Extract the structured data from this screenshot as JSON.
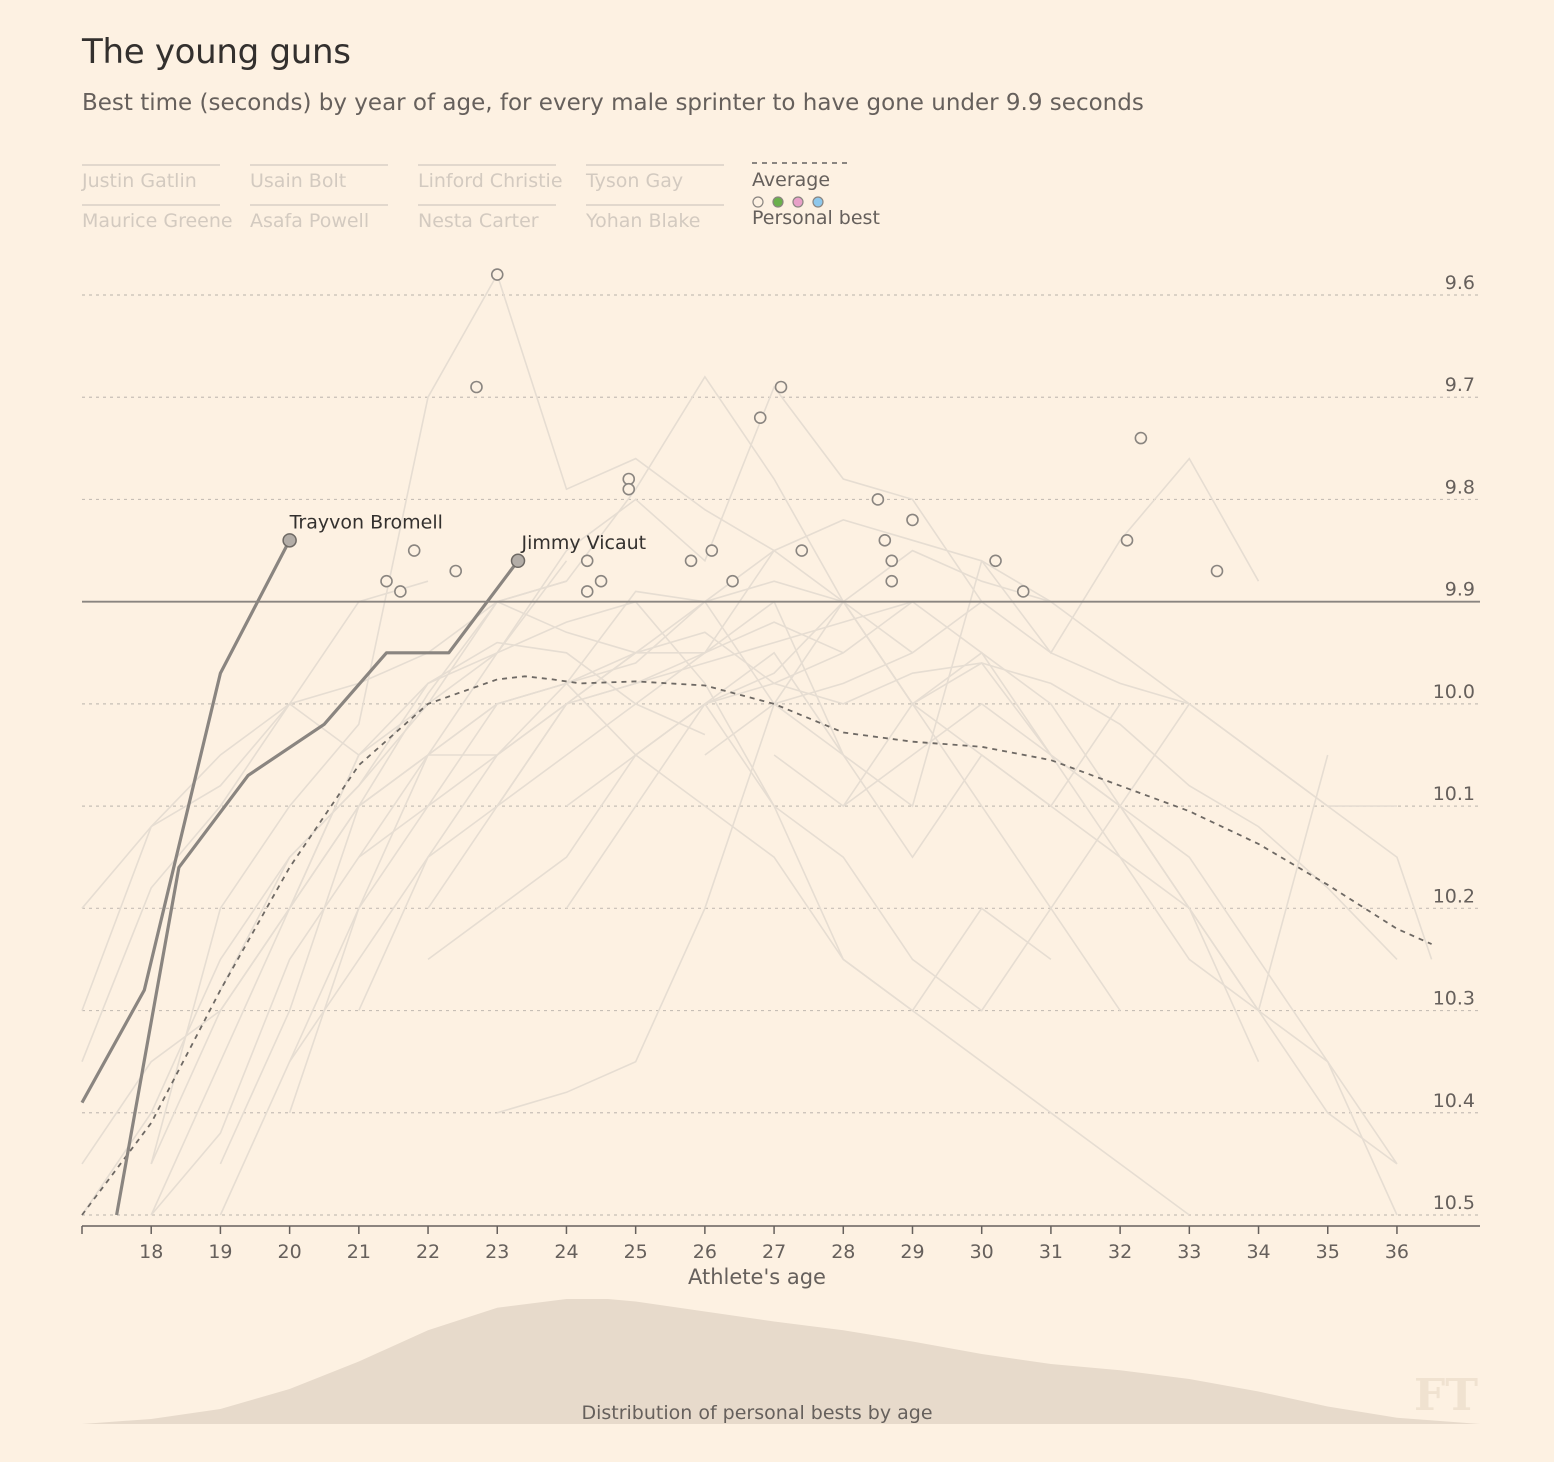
{
  "title": "The young guns",
  "subtitle": "Best time (seconds) by year of age, for every male sprinter to have gone under 9.9 seconds",
  "legend": {
    "athletes": [
      "Justin Gatlin",
      "Usain Bolt",
      "Linford Christie",
      "Tyson Gay",
      "Maurice Greene",
      "Asafa Powell",
      "Nesta Carter",
      "Yohan Blake"
    ],
    "average_label": "Average",
    "personal_best_label": "Personal best",
    "personal_best_colors": [
      "#fdf1e2",
      "#6ab04c",
      "#e8a0c8",
      "#8ec8ec"
    ]
  },
  "colors": {
    "background": "#fdf1e2",
    "background_line": "#e6ddd2",
    "highlight_line": "#8a8580",
    "average_line": "#6e6964",
    "threshold_line": "#8a8580",
    "grid": "#c7bfb6",
    "density_fill": "#e7dacb"
  },
  "chart_data": {
    "type": "line",
    "xlabel": "Athlete's age",
    "ylabel": "",
    "xlim": [
      17,
      37.2
    ],
    "ylim": [
      10.5,
      9.6
    ],
    "y_inverted": true,
    "xticks": [
      18,
      19,
      20,
      21,
      22,
      23,
      24,
      25,
      26,
      27,
      28,
      29,
      30,
      31,
      32,
      33,
      34,
      35,
      36
    ],
    "yticks": [
      9.6,
      9.7,
      9.8,
      9.9,
      10.0,
      10.1,
      10.2,
      10.3,
      10.4,
      10.5
    ],
    "ytick_labels": [
      "9.6",
      "9.7",
      "9.8",
      "9.9",
      "10.0",
      "10.1",
      "10.2",
      "10.3",
      "10.4",
      "10.5"
    ],
    "threshold": 9.9,
    "grid": true,
    "highlighted_series": [
      {
        "name": "Trayvon Bromell",
        "x": [
          17,
          17.9,
          19,
          20
        ],
        "y": [
          10.39,
          10.28,
          9.97,
          9.84
        ]
      },
      {
        "name": "Jimmy Vicaut",
        "x": [
          17.5,
          18.4,
          19.4,
          20.5,
          21.4,
          22.3,
          23.3
        ],
        "y": [
          10.5,
          10.16,
          10.07,
          10.02,
          9.95,
          9.95,
          9.86
        ]
      }
    ],
    "average": {
      "name": "Average",
      "x": [
        17,
        18,
        19,
        20,
        21,
        22,
        23,
        23.4,
        23.8,
        24.2,
        25,
        26,
        27,
        28,
        29,
        30,
        31,
        32,
        33,
        34,
        35,
        36,
        36.5
      ],
      "y": [
        10.5,
        10.41,
        10.28,
        10.16,
        10.06,
        10.0,
        9.976,
        9.973,
        9.976,
        9.98,
        9.978,
        9.982,
        10.0,
        10.028,
        10.037,
        10.042,
        10.055,
        10.08,
        10.105,
        10.137,
        10.177,
        10.22,
        10.235
      ]
    },
    "personal_bests": {
      "x": [
        23,
        22.7,
        26.8,
        27.1,
        24.9,
        24.9,
        28.5,
        29,
        32.3,
        21.8,
        21.4,
        21.6,
        22.4,
        24.3,
        24.3,
        24.5,
        25.8,
        26.1,
        26.4,
        27.4,
        28.6,
        28.7,
        28.7,
        30.2,
        30.6,
        32.1,
        33.4
      ],
      "y": [
        9.58,
        9.69,
        9.72,
        9.69,
        9.78,
        9.79,
        9.8,
        9.82,
        9.74,
        9.85,
        9.88,
        9.89,
        9.87,
        9.86,
        9.89,
        9.88,
        9.86,
        9.85,
        9.88,
        9.85,
        9.84,
        9.86,
        9.88,
        9.86,
        9.89,
        9.84,
        9.87
      ]
    },
    "background_series": [
      {
        "x": [
          17,
          18,
          19,
          20,
          21,
          22,
          23,
          24,
          25
        ],
        "y": [
          10.3,
          10.12,
          10.05,
          10.0,
          9.98,
          9.95,
          9.9,
          9.93,
          9.95
        ]
      },
      {
        "x": [
          18,
          19,
          20,
          21,
          22,
          23,
          24,
          25,
          26,
          27
        ],
        "y": [
          10.45,
          10.2,
          10.1,
          10.02,
          9.7,
          9.58,
          9.79,
          9.76,
          9.81,
          9.85
        ]
      },
      {
        "x": [
          19,
          20,
          21,
          22,
          23,
          24,
          25,
          26,
          27,
          28,
          29
        ],
        "y": [
          10.45,
          10.3,
          10.1,
          9.99,
          9.9,
          9.88,
          9.79,
          9.68,
          9.78,
          9.9,
          10.0
        ]
      },
      {
        "x": [
          20,
          21,
          22,
          23,
          24,
          25,
          26,
          27,
          28,
          29,
          30
        ],
        "y": [
          10.35,
          10.2,
          10.05,
          9.95,
          9.85,
          9.8,
          9.86,
          9.69,
          9.78,
          9.8,
          9.9
        ]
      },
      {
        "x": [
          17,
          18,
          19,
          20,
          21,
          22,
          23,
          24
        ],
        "y": [
          10.5,
          10.4,
          10.25,
          10.15,
          10.08,
          9.98,
          9.95,
          9.86
        ]
      },
      {
        "x": [
          18,
          19,
          20,
          21,
          22,
          23,
          24,
          25,
          26,
          27,
          28,
          29,
          30,
          31,
          32,
          33,
          34
        ],
        "y": [
          10.45,
          10.3,
          10.2,
          10.1,
          10.05,
          10.0,
          9.98,
          9.95,
          9.93,
          9.98,
          10.0,
          9.97,
          9.96,
          10.05,
          10.1,
          10.2,
          10.35
        ]
      },
      {
        "x": [
          22,
          23,
          24,
          25,
          26,
          27,
          28,
          29,
          30,
          31,
          32,
          33,
          34
        ],
        "y": [
          10.2,
          10.1,
          10.0,
          9.95,
          9.9,
          9.85,
          9.82,
          9.84,
          9.86,
          9.95,
          9.84,
          9.76,
          9.88
        ]
      },
      {
        "x": [
          24,
          25,
          26,
          27,
          28,
          29,
          30,
          31,
          32,
          33,
          34,
          35,
          36
        ],
        "y": [
          10.2,
          10.1,
          10.0,
          9.97,
          9.9,
          9.85,
          9.88,
          9.9,
          9.95,
          10.0,
          10.05,
          10.1,
          10.1
        ]
      },
      {
        "x": [
          19,
          20,
          21,
          22,
          23,
          24,
          25,
          26,
          27,
          28,
          29,
          30,
          31
        ],
        "y": [
          10.28,
          10.15,
          10.08,
          10.0,
          9.95,
          9.92,
          9.9,
          9.98,
          10.1,
          10.25,
          10.3,
          10.2,
          10.25
        ]
      },
      {
        "x": [
          21,
          22,
          23,
          24,
          25,
          26,
          27,
          28,
          29,
          30,
          31,
          32
        ],
        "y": [
          10.15,
          10.05,
          10.0,
          9.98,
          10.05,
          10.0,
          9.95,
          10.05,
          10.15,
          10.05,
          10.1,
          10.0
        ]
      },
      {
        "x": [
          17,
          18,
          19,
          20,
          21,
          22
        ],
        "y": [
          10.2,
          10.12,
          10.08,
          10.0,
          9.9,
          9.88
        ]
      },
      {
        "x": [
          18,
          19,
          20,
          21,
          22,
          23,
          24,
          25,
          26,
          27,
          28,
          29
        ],
        "y": [
          10.5,
          10.42,
          10.25,
          10.15,
          10.1,
          10.0,
          9.98,
          9.96,
          9.9,
          9.88,
          9.9,
          9.95
        ]
      },
      {
        "x": [
          20,
          21,
          22,
          23,
          24,
          25,
          26,
          27,
          28,
          29,
          30,
          31,
          32,
          33,
          34,
          35,
          36
        ],
        "y": [
          10.4,
          10.2,
          10.1,
          10.05,
          10.0,
          9.95,
          9.95,
          9.85,
          9.9,
          10.0,
          10.05,
          10.1,
          10.15,
          10.2,
          10.3,
          10.35,
          10.5
        ]
      },
      {
        "x": [
          23,
          24,
          25,
          26,
          27,
          28,
          29,
          30,
          31
        ],
        "y": [
          10.1,
          10.05,
          10.0,
          9.95,
          9.9,
          10.05,
          10.1,
          9.86,
          9.9
        ]
      },
      {
        "x": [
          21,
          22,
          23,
          24,
          25,
          26,
          27,
          28
        ],
        "y": [
          10.3,
          10.15,
          10.05,
          9.98,
          9.89,
          9.9,
          10.0,
          10.05
        ]
      },
      {
        "x": [
          17,
          18,
          19,
          20,
          21,
          22,
          23,
          24,
          25,
          26
        ],
        "y": [
          10.35,
          10.18,
          10.1,
          10.0,
          10.05,
          9.98,
          9.94,
          9.95,
          10.0,
          10.03
        ]
      },
      {
        "x": [
          25,
          26,
          27,
          28,
          29,
          30,
          31,
          32,
          33,
          34,
          35,
          36
        ],
        "y": [
          10.05,
          10.0,
          9.98,
          9.95,
          9.9,
          9.95,
          10.0,
          10.1,
          10.15,
          10.25,
          10.35,
          10.45
        ]
      },
      {
        "x": [
          19,
          20,
          21,
          22,
          23,
          24,
          25,
          26,
          27,
          28,
          29,
          30
        ],
        "y": [
          10.5,
          10.35,
          10.25,
          10.15,
          10.1,
          10.0,
          9.98,
          9.96,
          9.94,
          9.92,
          9.9,
          9.9
        ]
      },
      {
        "x": [
          26,
          27,
          28,
          29,
          30,
          31,
          32,
          33,
          34,
          35,
          36,
          36.5
        ],
        "y": [
          10.05,
          10.0,
          9.98,
          9.95,
          9.9,
          9.95,
          9.98,
          10.0,
          10.05,
          10.1,
          10.15,
          10.25
        ]
      },
      {
        "x": [
          22,
          23,
          24,
          25,
          26,
          27,
          28,
          29,
          30,
          31,
          32,
          33
        ],
        "y": [
          10.25,
          10.2,
          10.15,
          10.05,
          10.0,
          10.1,
          10.15,
          10.25,
          10.3,
          10.2,
          10.1,
          10.0
        ]
      },
      {
        "x": [
          18,
          19,
          20,
          21,
          22,
          23,
          24
        ],
        "y": [
          10.5,
          10.35,
          10.2,
          10.05,
          10.0,
          9.9,
          9.88
        ]
      },
      {
        "x": [
          28,
          29,
          30,
          31,
          32,
          33,
          34,
          35,
          36
        ],
        "y": [
          10.1,
          10.05,
          10.0,
          10.05,
          10.1,
          10.2,
          10.3,
          10.4,
          10.45
        ]
      },
      {
        "x": [
          23,
          24,
          25,
          26,
          27,
          28,
          29,
          30,
          31,
          32
        ],
        "y": [
          10.4,
          10.38,
          10.35,
          10.2,
          10.0,
          9.9,
          10.0,
          10.1,
          10.2,
          10.3
        ]
      },
      {
        "x": [
          17,
          18,
          19,
          20,
          21
        ],
        "y": [
          10.45,
          10.35,
          10.3,
          10.2,
          10.05
        ]
      },
      {
        "x": [
          24,
          25,
          26,
          27,
          28,
          29,
          30,
          31,
          32,
          33
        ],
        "y": [
          10.1,
          10.05,
          10.1,
          10.15,
          10.25,
          10.3,
          10.35,
          10.4,
          10.45,
          10.5
        ]
      },
      {
        "x": [
          27,
          28,
          29,
          30,
          31,
          32,
          33,
          34,
          35
        ],
        "y": [
          10.05,
          10.1,
          10.0,
          9.95,
          10.05,
          10.15,
          10.25,
          10.3,
          10.05
        ]
      },
      {
        "x": [
          20,
          21,
          22,
          23,
          24,
          25,
          26,
          27,
          28
        ],
        "y": [
          10.2,
          10.1,
          10.05,
          10.05,
          10.0,
          9.98,
          9.95,
          9.92,
          9.95
        ]
      },
      {
        "x": [
          29,
          30,
          31,
          32,
          33,
          34,
          35,
          36
        ],
        "y": [
          10.0,
          9.96,
          9.98,
          10.02,
          10.08,
          10.12,
          10.18,
          10.25
        ]
      }
    ],
    "series_labels": [
      {
        "text": "Trayvon Bromell",
        "x": 20,
        "y": 9.84
      },
      {
        "text": "Jimmy Vicaut",
        "x": 23.35,
        "y": 9.86
      }
    ],
    "distribution": {
      "label": "Distribution of personal bests by age",
      "x": [
        17,
        18,
        19,
        20,
        21,
        22,
        23,
        24,
        24.6,
        25,
        26,
        27,
        28,
        29,
        30,
        31,
        32,
        33,
        34,
        35,
        36,
        37.2
      ],
      "density": [
        0.0,
        0.04,
        0.12,
        0.28,
        0.5,
        0.75,
        0.93,
        1.0,
        1.0,
        0.98,
        0.9,
        0.82,
        0.75,
        0.66,
        0.56,
        0.48,
        0.43,
        0.36,
        0.26,
        0.14,
        0.05,
        0.0
      ]
    }
  },
  "watermark": "FT"
}
